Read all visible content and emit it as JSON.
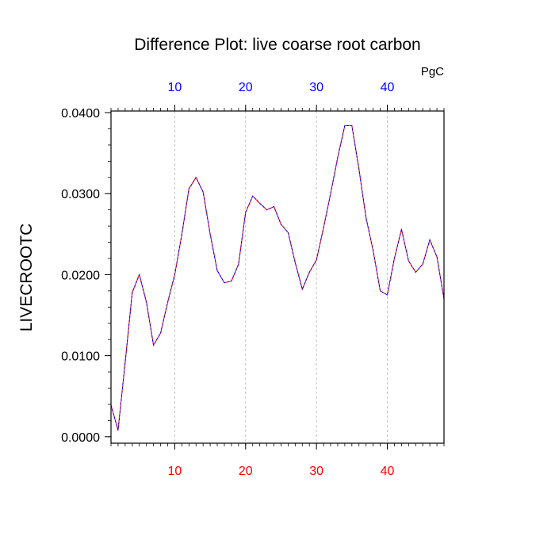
{
  "chart_data": {
    "type": "line",
    "title": "Difference Plot: live coarse root carbon",
    "units_label": "PgC",
    "ylabel": "LIVECROOTC",
    "xlim": [
      1,
      48
    ],
    "ylim": [
      -0.0008,
      0.0402
    ],
    "x_ticks": [
      "10",
      "20",
      "30",
      "40"
    ],
    "x_tick_values": [
      10,
      20,
      30,
      40
    ],
    "y_ticks": [
      "0.0000",
      "0.0100",
      "0.0200",
      "0.0300",
      "0.0400"
    ],
    "y_tick_values": [
      0,
      0.01,
      0.02,
      0.03,
      0.04
    ],
    "grid": "vertical dashed at major x ticks",
    "colors": {
      "bottom_tick_labels": "#ff0000",
      "top_tick_labels": "#0000ff",
      "line_primary": "#ff0000",
      "line_secondary": "#0000ff"
    },
    "x": [
      1,
      2,
      3,
      4,
      5,
      6,
      7,
      8,
      9,
      10,
      11,
      12,
      13,
      14,
      15,
      16,
      17,
      18,
      19,
      20,
      21,
      22,
      23,
      24,
      25,
      26,
      27,
      28,
      29,
      30,
      31,
      32,
      33,
      34,
      35,
      36,
      37,
      38,
      39,
      40,
      41,
      42,
      43,
      44,
      45,
      46,
      47,
      48
    ],
    "series": [
      {
        "values": [
          0.0039,
          0.0008,
          0.0092,
          0.0178,
          0.02,
          0.0166,
          0.0113,
          0.0128,
          0.0166,
          0.02,
          0.025,
          0.0306,
          0.032,
          0.0302,
          0.025,
          0.0205,
          0.019,
          0.0192,
          0.0213,
          0.0277,
          0.0297,
          0.0288,
          0.028,
          0.0284,
          0.0262,
          0.0252,
          0.0215,
          0.0182,
          0.0203,
          0.0218,
          0.0258,
          0.03,
          0.0345,
          0.0384,
          0.0384,
          0.033,
          0.027,
          0.023,
          0.018,
          0.0175,
          0.022,
          0.0256,
          0.0217,
          0.0203,
          0.0213,
          0.0243,
          0.0222,
          0.017
        ]
      }
    ]
  }
}
